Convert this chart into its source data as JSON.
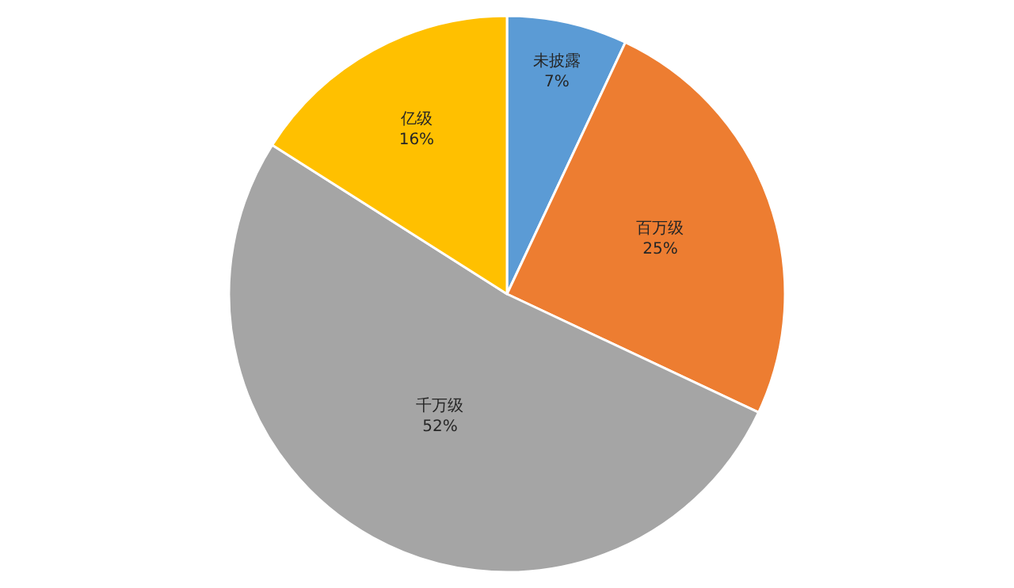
{
  "chart_data": {
    "type": "pie",
    "categories": [
      "未披露",
      "百万级",
      "千万级",
      "亿级"
    ],
    "values": [
      7,
      25,
      52,
      16
    ],
    "value_labels": [
      "7%",
      "25%",
      "52%",
      "16%"
    ],
    "colors": [
      "#5b9bd5",
      "#ed7d31",
      "#a5a5a5",
      "#ffc000"
    ],
    "legend": false
  }
}
